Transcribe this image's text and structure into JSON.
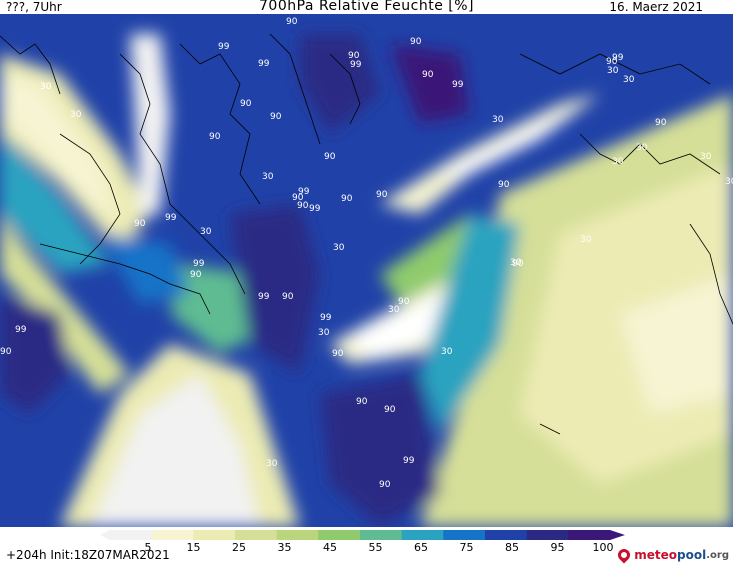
{
  "header": {
    "top_left": "???, 7Uhr",
    "title": "700hPa Relative Feuchte [%]",
    "top_right": "16. Maerz 2021"
  },
  "footer": {
    "run_info": "+204h  Init:18Z07MAR2021",
    "logo_meteo": "meteo",
    "logo_pool": "pool",
    "logo_tld": ".org"
  },
  "colorbar": {
    "labels": [
      "5",
      "15",
      "25",
      "35",
      "45",
      "55",
      "65",
      "75",
      "85",
      "95",
      "100"
    ],
    "colors": [
      "#f2f2f2",
      "#f6f4d2",
      "#ecebb4",
      "#d6df98",
      "#b9d67d",
      "#8fcb6d",
      "#5fbc92",
      "#2aa3c0",
      "#1573c8",
      "#2042a8",
      "#2a2a84",
      "#3b1778"
    ]
  },
  "map": {
    "contour_labels": [
      {
        "text": "90"
      },
      {
        "text": "99"
      },
      {
        "text": "99"
      },
      {
        "text": "90"
      },
      {
        "text": "99"
      },
      {
        "text": "90"
      },
      {
        "text": "90"
      },
      {
        "text": "99"
      },
      {
        "text": "90"
      },
      {
        "text": "90"
      },
      {
        "text": "90"
      },
      {
        "text": "99"
      },
      {
        "text": "90"
      },
      {
        "text": "30"
      },
      {
        "text": "30"
      },
      {
        "text": "90"
      },
      {
        "text": "30"
      },
      {
        "text": "90"
      },
      {
        "text": "90"
      },
      {
        "text": "99"
      },
      {
        "text": "90"
      },
      {
        "text": "90"
      },
      {
        "text": "30"
      },
      {
        "text": "30"
      },
      {
        "text": "90"
      },
      {
        "text": "99"
      },
      {
        "text": "99"
      },
      {
        "text": "90"
      },
      {
        "text": "90"
      },
      {
        "text": "30"
      },
      {
        "text": "30"
      },
      {
        "text": "90"
      },
      {
        "text": "99"
      },
      {
        "text": "90"
      },
      {
        "text": "99"
      },
      {
        "text": "99"
      },
      {
        "text": "90"
      },
      {
        "text": "30"
      },
      {
        "text": "30"
      },
      {
        "text": "90"
      },
      {
        "text": "30"
      },
      {
        "text": "90"
      },
      {
        "text": "90"
      },
      {
        "text": "30"
      },
      {
        "text": "30"
      },
      {
        "text": "90"
      },
      {
        "text": "99"
      },
      {
        "text": "30"
      },
      {
        "text": "30"
      },
      {
        "text": "90"
      },
      {
        "text": "30"
      },
      {
        "text": "30"
      },
      {
        "text": "30"
      },
      {
        "text": "30"
      },
      {
        "text": "99"
      },
      {
        "text": "90"
      },
      {
        "text": "30"
      }
    ]
  }
}
